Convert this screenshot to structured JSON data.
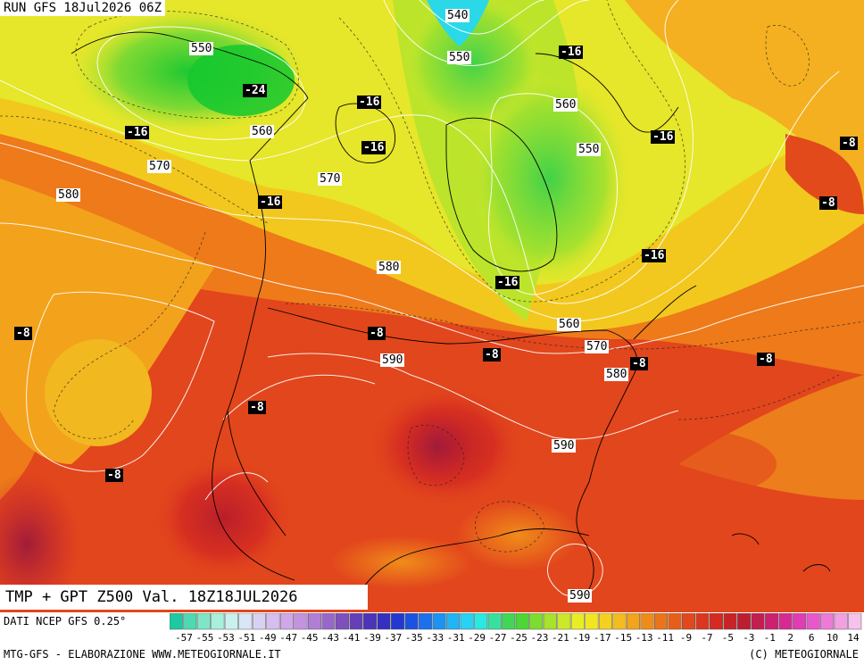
{
  "header": {
    "run_text": "RUN GFS 18Jul2026 06Z"
  },
  "footer": {
    "valid_text": "TMP + GPT Z500 Val. 18Z18JUL2026",
    "source_text": "DATI NCEP GFS 0.25°",
    "credit_left": "MTG-GFS - ELABORAZIONE WWW.METEOGIORNALE.IT",
    "credit_right": "(C) METEOGIORNALE"
  },
  "colors": {
    "cold": "#36d13a",
    "mid": "#e8f21a",
    "warm": "#f2a21a",
    "hot": "#e2361a",
    "deep": "#b8202a"
  },
  "scale": {
    "ticks": [
      "-57",
      "-55",
      "-53",
      "-51",
      "-49",
      "-47",
      "-45",
      "-43",
      "-41",
      "-39",
      "-37",
      "-35",
      "-33",
      "-31",
      "-29",
      "-27",
      "-25",
      "-23",
      "-21",
      "-19",
      "-17",
      "-15",
      "-13",
      "-11",
      "-9",
      "-7",
      "-5",
      "-3",
      "-1",
      "2",
      "6",
      "10",
      "14"
    ],
    "swatches": [
      "#1ec9a2",
      "#4ed9b2",
      "#7ee6c6",
      "#a8efdc",
      "#c8f2ee",
      "#d8e6f6",
      "#d8d2f2",
      "#d6bef0",
      "#d0a8ea",
      "#c294e0",
      "#b07ed4",
      "#9868c8",
      "#7e50be",
      "#6440b8",
      "#4c34b8",
      "#3430c0",
      "#2438d0",
      "#1c52e0",
      "#1c70ec",
      "#1c92f2",
      "#22b4f4",
      "#28d2f4",
      "#2ce8e2",
      "#38e0a0",
      "#42d658",
      "#4ed636",
      "#7cdc30",
      "#a8e22c",
      "#cce82a",
      "#e8ee26",
      "#f2e624",
      "#f4d020",
      "#f4bc1e",
      "#f2a41c",
      "#ee8c1a",
      "#ea741a",
      "#e65e1a",
      "#e2481c",
      "#dc361e",
      "#d42a22",
      "#c82428",
      "#bc1e30",
      "#c21e50",
      "#cc2070",
      "#d62a92",
      "#e03cb4",
      "#e858cc",
      "#ee7ad8",
      "#f2a0e2",
      "#f6c2ec"
    ]
  },
  "map_labels": {
    "gpt": [
      "540",
      "550",
      "550",
      "560",
      "570",
      "580",
      "570",
      "560",
      "550",
      "580",
      "560",
      "570",
      "580",
      "590",
      "590",
      "590"
    ],
    "tmp": [
      "-16",
      "-16",
      "-24",
      "-16",
      "-16",
      "-16",
      "-16",
      "-8",
      "-16",
      "-8",
      "-16",
      "-8",
      "-8",
      "-8",
      "-8",
      "-8",
      "-8",
      "-8"
    ]
  }
}
